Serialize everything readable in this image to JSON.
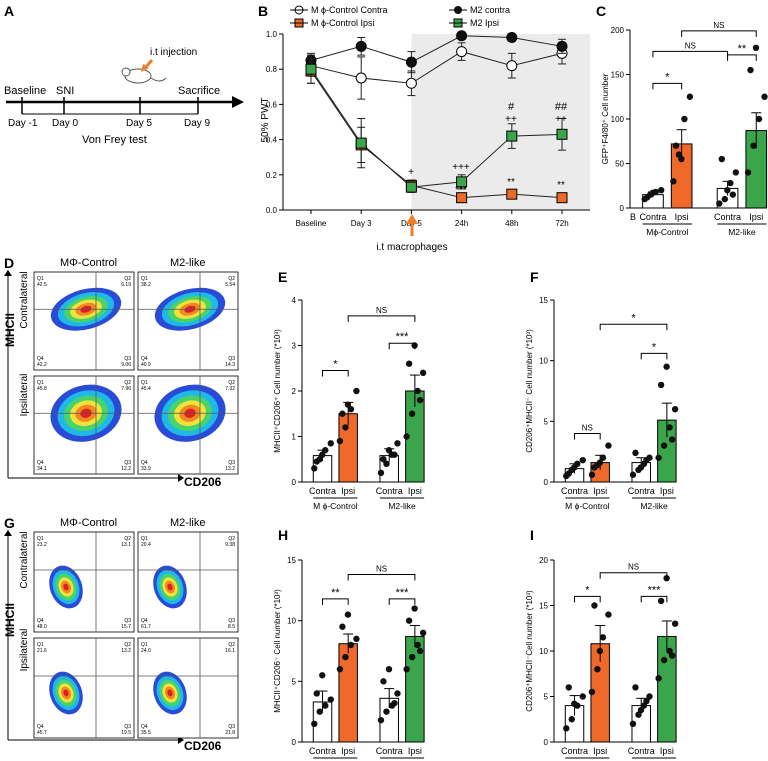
{
  "panels": {
    "A": {
      "label": "A",
      "timeline": [
        "Baseline",
        "SNI",
        "i.t injection",
        "Sacrifice"
      ],
      "days": [
        "Day -1",
        "Day 0",
        "Day 5",
        "Day 9"
      ],
      "test": "Von Frey test"
    },
    "B": {
      "label": "B",
      "ylabel": "50% PWT",
      "yticks": [
        "0.0",
        "0.2",
        "0.4",
        "0.6",
        "0.8",
        "1.0"
      ],
      "categories": [
        "Baseline",
        "Day 3",
        "Day 5",
        "24h",
        "48h",
        "72h"
      ],
      "legend": [
        "M ϕ-Control Contra",
        "M ϕ-Control Ipsi",
        "M2 contra",
        "M2 Ipsi"
      ],
      "annotation": "i.t macrophages",
      "sig": [
        "+",
        "+++",
        "***",
        "#",
        "++",
        "**",
        "##",
        "++",
        "**"
      ]
    },
    "C": {
      "label": "C",
      "ylabel": "GFP⁺F4/80⁺ Cell number",
      "yticks": [
        "0",
        "50",
        "100",
        "150",
        "200"
      ],
      "xlabels": [
        "B",
        "Contra",
        "Ipsi",
        "Contra",
        "Ipsi"
      ],
      "groups": [
        "Mϕ-Control",
        "M2-like"
      ],
      "sig": [
        "*",
        "NS",
        "**",
        "NS"
      ]
    },
    "D": {
      "label": "D",
      "groups": [
        "MΦ-Control",
        "M2-like"
      ],
      "rows": [
        "Contralateral",
        "Ipsilateral"
      ],
      "xaxis": "CD206",
      "yaxis": "MHCII",
      "quadrants": [
        [
          "Q1\n42.5",
          "Q2\n6.19",
          "Q4\n42.2",
          "Q3\n9.06"
        ],
        [
          "Q1\n38.2",
          "Q2\n5.54",
          "Q4\n40.9",
          "Q3\n14.3"
        ],
        [
          "Q1\n45.8",
          "Q2\n7.96",
          "Q4\n34.1",
          "Q3\n12.2"
        ],
        [
          "Q1\n45.4",
          "Q2\n7.32",
          "Q4\n33.9",
          "Q3\n13.2"
        ]
      ]
    },
    "E": {
      "label": "E",
      "ylabel": "MHCII⁺CD206⁺ Cell number (*10³)",
      "yticks": [
        "0",
        "1",
        "2",
        "3",
        "4"
      ],
      "xlabels": [
        "Contra",
        "Ipsi",
        "Contra",
        "Ipsi"
      ],
      "groups": [
        "M ϕ-Control",
        "M2-like"
      ],
      "sig": [
        "*",
        "***",
        "NS"
      ]
    },
    "F": {
      "label": "F",
      "ylabel": "CD206⁺MHCII⁻ Cell number (*10³)",
      "yticks": [
        "0",
        "5",
        "10",
        "15"
      ],
      "xlabels": [
        "Contra",
        "Ipsi",
        "Contra",
        "Ipsi"
      ],
      "groups": [
        "M ϕ-Control",
        "M2-like"
      ],
      "sig": [
        "NS",
        "*",
        "*"
      ]
    },
    "G": {
      "label": "G",
      "groups": [
        "MΦ-Control",
        "M2-like"
      ],
      "rows": [
        "Contralateral",
        "Ipsilateral"
      ],
      "xaxis": "CD206",
      "yaxis": "MHCII",
      "quadrants": [
        [
          "Q1\n23.2",
          "Q2\n13.1",
          "Q4\n48.0",
          "Q3\n15.7"
        ],
        [
          "Q1\n20.4",
          "Q2\n9.38",
          "Q4\n61.7",
          "Q3\n8.5"
        ],
        [
          "Q1\n21.6",
          "Q2\n13.2",
          "Q4\n45.7",
          "Q3\n19.5"
        ],
        [
          "Q1\n24.0",
          "Q2\n16.1",
          "Q4\n35.5",
          "Q3\n21.8"
        ]
      ]
    },
    "H": {
      "label": "H",
      "ylabel": "MHCII⁺CD206⁻ Cell number (*10³)",
      "yticks": [
        "0",
        "5",
        "10",
        "15"
      ],
      "xlabels": [
        "Contra",
        "Ipsi",
        "Contra",
        "Ipsi"
      ],
      "groups": [
        "M ϕ-Control",
        "M2-like"
      ],
      "sig": [
        "**",
        "***",
        "NS"
      ]
    },
    "I": {
      "label": "I",
      "ylabel": "CD206⁺MHCII⁻Cell number (*10³)",
      "yticks": [
        "0",
        "5",
        "10",
        "15",
        "20"
      ],
      "xlabels": [
        "Contra",
        "Ipsi",
        "Contra",
        "Ipsi"
      ],
      "groups": [
        "Mϕ-Control",
        "M2-like"
      ],
      "sig": [
        "*",
        "***",
        "NS"
      ]
    }
  },
  "chart_data": [
    {
      "panel": "B",
      "type": "line",
      "ylim": [
        0,
        1.0
      ],
      "categories": [
        "Baseline",
        "Day 3",
        "Day 5",
        "24h",
        "48h",
        "72h"
      ],
      "series": [
        {
          "name": "M ϕ-Control Contra",
          "color": "#ffffff",
          "values": [
            0.82,
            0.75,
            0.72,
            0.9,
            0.82,
            0.89
          ],
          "err": [
            0.06,
            0.12,
            0.07,
            0.05,
            0.07,
            0.06
          ]
        },
        {
          "name": "M2 contra",
          "color": "#111111",
          "values": [
            0.85,
            0.93,
            0.84,
            0.99,
            0.98,
            0.93
          ],
          "err": [
            0.04,
            0.05,
            0.06,
            0.02,
            0.02,
            0.04
          ]
        },
        {
          "name": "M ϕ-Control Ipsi",
          "color": "#ef6a2a",
          "values": [
            0.79,
            0.37,
            0.14,
            0.07,
            0.09,
            0.07
          ],
          "err": [
            0.07,
            0.1,
            0.03,
            0.02,
            0.02,
            0.02
          ]
        },
        {
          "name": "M2 Ipsi",
          "color": "#3aa54a",
          "values": [
            0.8,
            0.38,
            0.13,
            0.16,
            0.42,
            0.43
          ],
          "err": [
            0.08,
            0.14,
            0.03,
            0.04,
            0.07,
            0.09
          ]
        }
      ]
    },
    {
      "panel": "C",
      "type": "bar",
      "ylim": [
        0,
        200
      ],
      "categories": [
        "Contra",
        "Ipsi",
        "Contra",
        "Ipsi"
      ],
      "values": [
        15,
        72,
        22,
        87
      ],
      "err": [
        3,
        16,
        8,
        20
      ],
      "colors": [
        "#ffffff",
        "#ef6a2a",
        "#ffffff",
        "#3aa54a"
      ],
      "points": [
        [
          10,
          15,
          18,
          20,
          12,
          17
        ],
        [
          30,
          60,
          100,
          125,
          70,
          55
        ],
        [
          5,
          10,
          28,
          40,
          55,
          20,
          15
        ],
        [
          40,
          70,
          100,
          125,
          155,
          180
        ]
      ]
    },
    {
      "panel": "E",
      "type": "bar",
      "ylim": [
        0,
        4
      ],
      "categories": [
        "Contra",
        "Ipsi",
        "Contra",
        "Ipsi"
      ],
      "values": [
        0.58,
        1.5,
        0.58,
        2.0
      ],
      "err": [
        0.12,
        0.25,
        0.15,
        0.35
      ],
      "colors": [
        "#ffffff",
        "#ef6a2a",
        "#ffffff",
        "#3aa54a"
      ],
      "points": [
        [
          0.3,
          0.5,
          0.7,
          0.85,
          0.45,
          0.6
        ],
        [
          0.9,
          1.2,
          1.6,
          2.0,
          1.5,
          1.7
        ],
        [
          0.2,
          0.4,
          0.6,
          0.85,
          0.5,
          0.7,
          0.6
        ],
        [
          1.0,
          1.5,
          2.0,
          2.4,
          2.6,
          3.0,
          1.8
        ]
      ]
    },
    {
      "panel": "F",
      "type": "bar",
      "ylim": [
        0,
        15
      ],
      "categories": [
        "Contra",
        "Ipsi",
        "Contra",
        "Ipsi"
      ],
      "values": [
        1.1,
        1.6,
        1.6,
        5.1
      ],
      "err": [
        0.4,
        0.6,
        0.4,
        1.4
      ],
      "colors": [
        "#ffffff",
        "#ef6a2a",
        "#ffffff",
        "#3aa54a"
      ],
      "points": [
        [
          0.5,
          1.0,
          1.5,
          1.8,
          0.7,
          1.2
        ],
        [
          0.6,
          1.4,
          2.0,
          3.0,
          1.2,
          1.6
        ],
        [
          0.6,
          1.0,
          1.5,
          2.0,
          2.4,
          1.2,
          1.8
        ],
        [
          2.0,
          3.0,
          4.5,
          6.0,
          8.0,
          9.5,
          3.5
        ]
      ]
    },
    {
      "panel": "H",
      "type": "bar",
      "ylim": [
        0,
        15
      ],
      "categories": [
        "Contra",
        "Ipsi",
        "Contra",
        "Ipsi"
      ],
      "values": [
        3.3,
        8.1,
        3.6,
        8.7
      ],
      "err": [
        0.9,
        0.8,
        0.8,
        0.9
      ],
      "colors": [
        "#ffffff",
        "#ef6a2a",
        "#ffffff",
        "#3aa54a"
      ],
      "points": [
        [
          1.5,
          2.5,
          3.0,
          3.5,
          4.0,
          5.5
        ],
        [
          6.0,
          7.0,
          8.0,
          8.5,
          9.5,
          10.5
        ],
        [
          1.8,
          2.5,
          3.0,
          4.0,
          5.0,
          6.0,
          3.2
        ],
        [
          6.0,
          7.0,
          8.0,
          9.0,
          10.0,
          11.0,
          7.5
        ]
      ]
    },
    {
      "panel": "I",
      "type": "bar",
      "ylim": [
        0,
        20
      ],
      "categories": [
        "Contra",
        "Ipsi",
        "Contra",
        "Ipsi"
      ],
      "values": [
        4.0,
        10.8,
        4.0,
        11.6
      ],
      "err": [
        1.1,
        2.0,
        0.8,
        1.7
      ],
      "colors": [
        "#ffffff",
        "#ef6a2a",
        "#ffffff",
        "#3aa54a"
      ],
      "points": [
        [
          1.5,
          2.5,
          4.0,
          5.0,
          6.0,
          4.2
        ],
        [
          5.5,
          8.0,
          11.5,
          14.0,
          15.0,
          10.0
        ],
        [
          2.0,
          3.0,
          4.0,
          5.0,
          6.0,
          3.5,
          4.5
        ],
        [
          7.0,
          9.0,
          10.0,
          13.0,
          15.5,
          18.0,
          9.5
        ]
      ]
    }
  ]
}
